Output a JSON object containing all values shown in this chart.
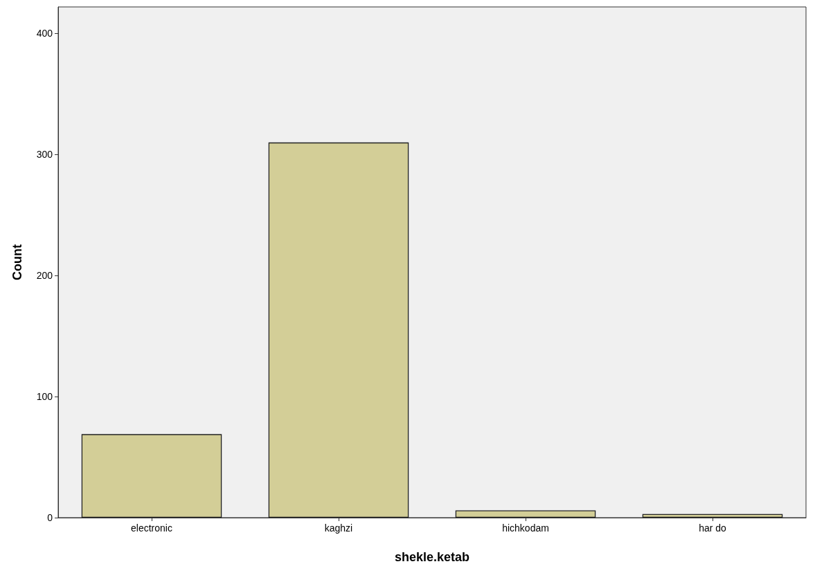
{
  "chart_data": {
    "type": "bar",
    "xlabel": "shekle.ketab",
    "ylabel": "Count",
    "categories": [
      "electronic",
      "kaghzi",
      "hichkodam",
      "har do"
    ],
    "values": [
      69,
      310,
      6,
      3
    ],
    "color": "#d3ce97",
    "ylim": [
      0,
      422
    ],
    "yticks": [
      0,
      100,
      200,
      300,
      400
    ],
    "grid": false
  }
}
